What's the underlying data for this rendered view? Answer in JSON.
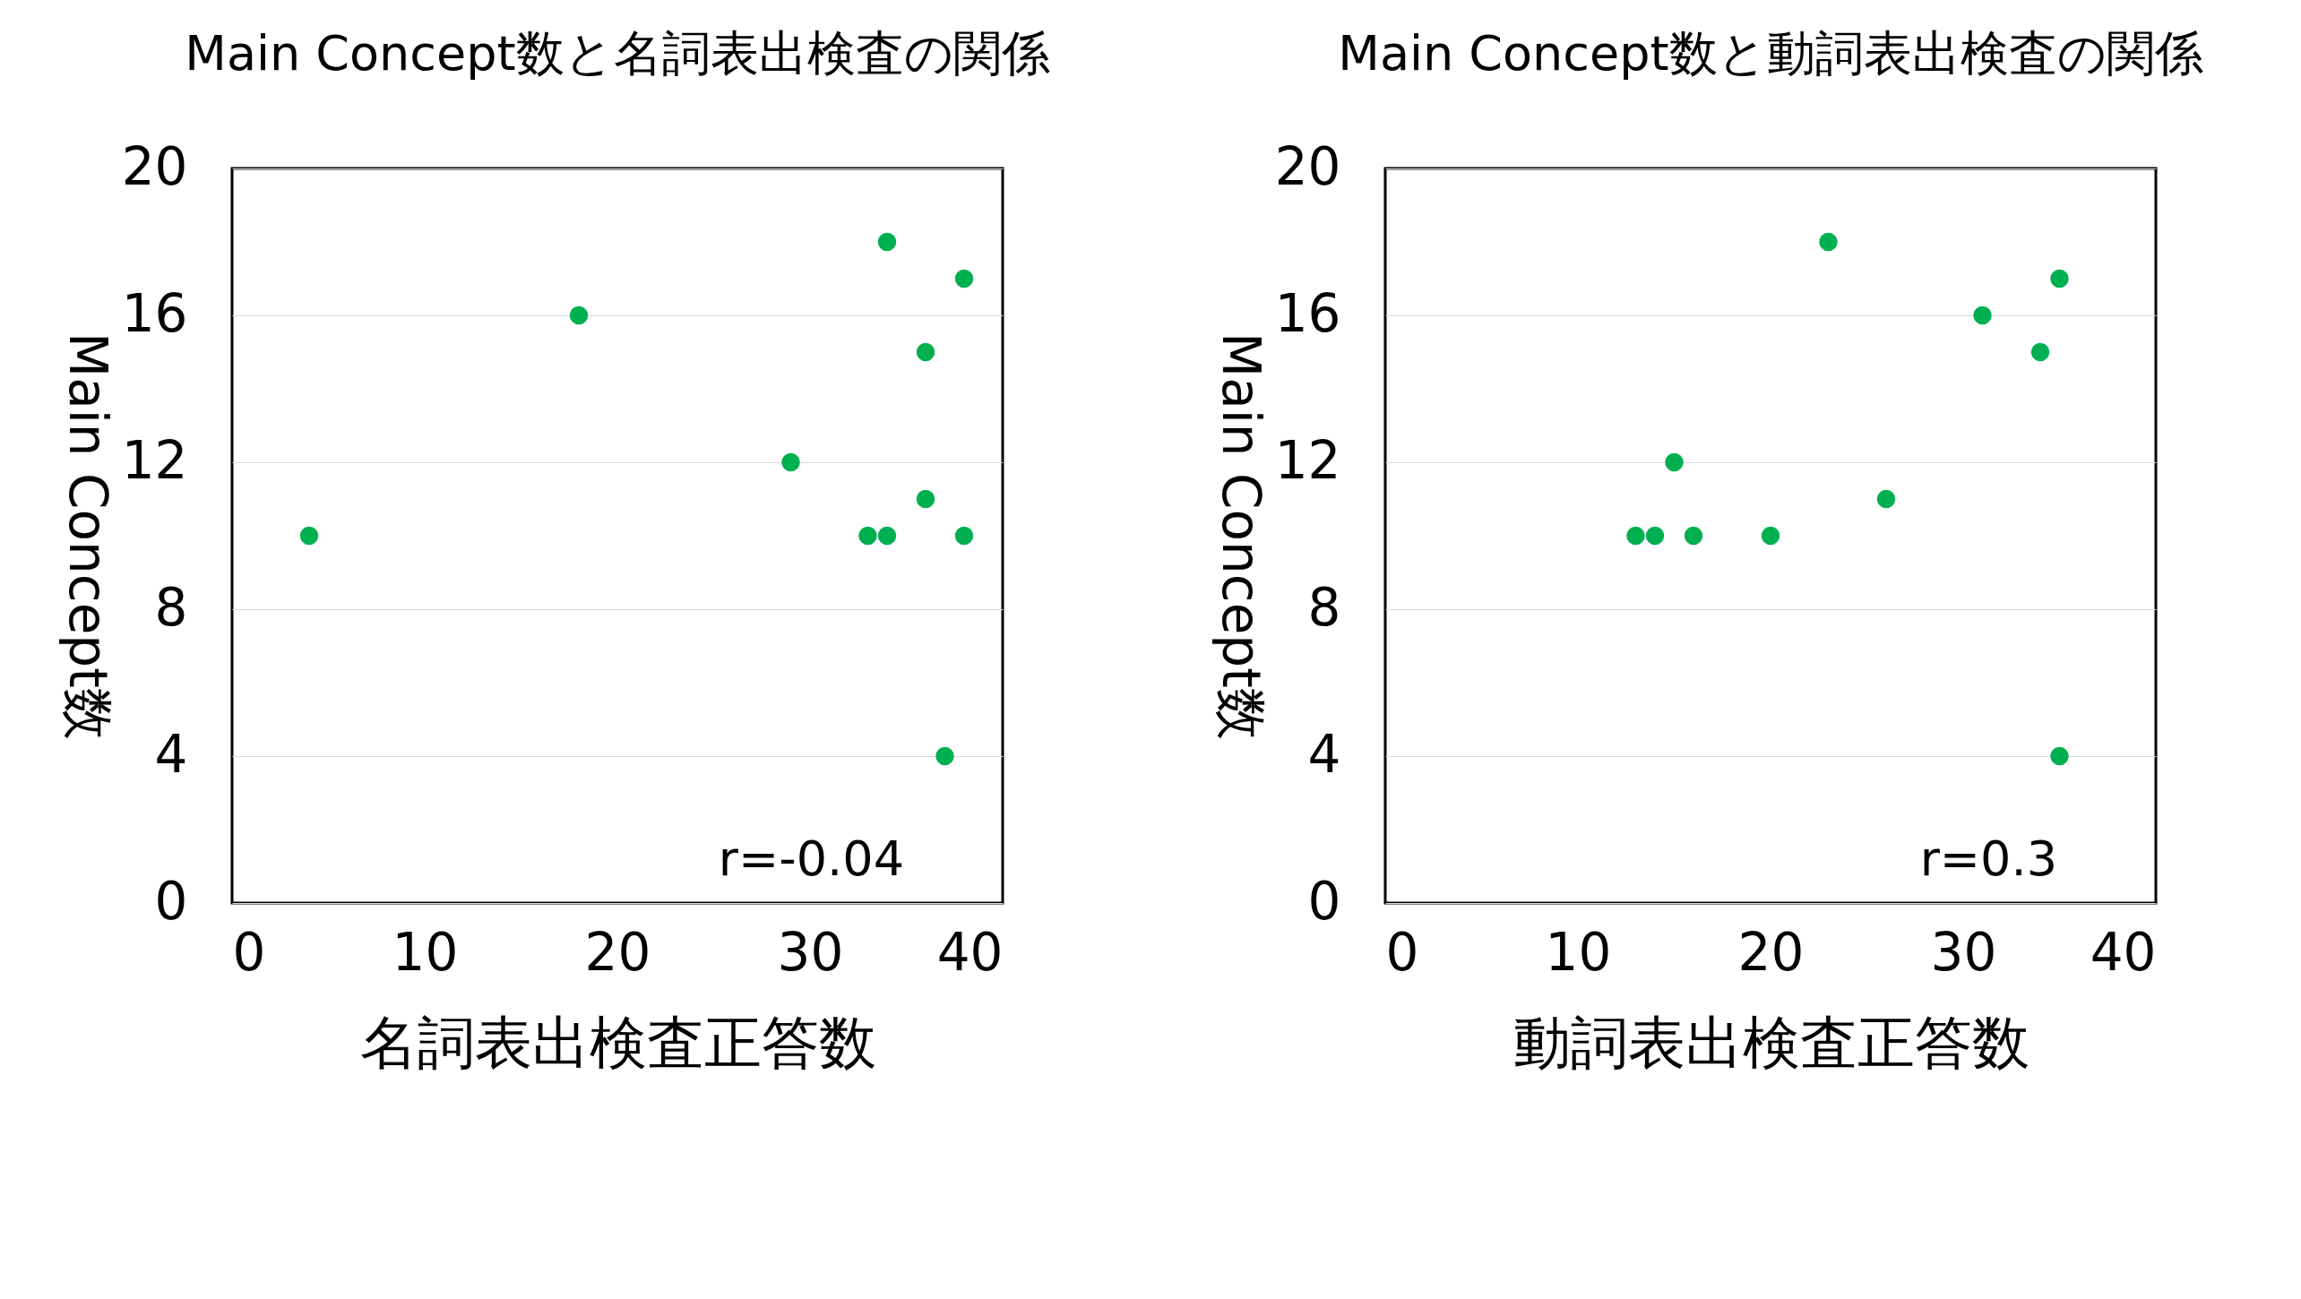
{
  "chart_data": [
    {
      "type": "scatter",
      "title": "Main Concept数と名詞表出検査の関係",
      "xlabel": "名詞表出検査正答数",
      "ylabel": "Main Concept数",
      "x": [
        4,
        18,
        29,
        33,
        34,
        34,
        36,
        36,
        37,
        38,
        38
      ],
      "values": [
        10,
        16,
        12,
        10,
        10,
        18,
        15,
        11,
        4,
        17,
        10
      ],
      "color": "#00b050",
      "xlim": [
        0,
        40
      ],
      "ylim": [
        0,
        20
      ],
      "xticks": [
        0,
        10,
        20,
        30,
        40
      ],
      "yticks": [
        0,
        4,
        8,
        12,
        16,
        20
      ],
      "grid": "y",
      "marker": "circle",
      "annotations": [
        "r=-0.04"
      ]
    },
    {
      "type": "scatter",
      "title": "Main Concept数と動詞表出検査の関係",
      "xlabel": "動詞表出検査正答数",
      "ylabel": "Main Concept数",
      "x": [
        13,
        14,
        15,
        16,
        20,
        23,
        26,
        31,
        34,
        35,
        35
      ],
      "values": [
        10,
        10,
        12,
        10,
        10,
        18,
        11,
        16,
        15,
        17,
        4
      ],
      "color": "#00b050",
      "xlim": [
        0,
        40
      ],
      "ylim": [
        0,
        20
      ],
      "xticks": [
        0,
        10,
        20,
        30,
        40
      ],
      "yticks": [
        0,
        4,
        8,
        12,
        16,
        20
      ],
      "grid": "y",
      "marker": "circle",
      "annotations": [
        "r=0.3"
      ]
    }
  ]
}
